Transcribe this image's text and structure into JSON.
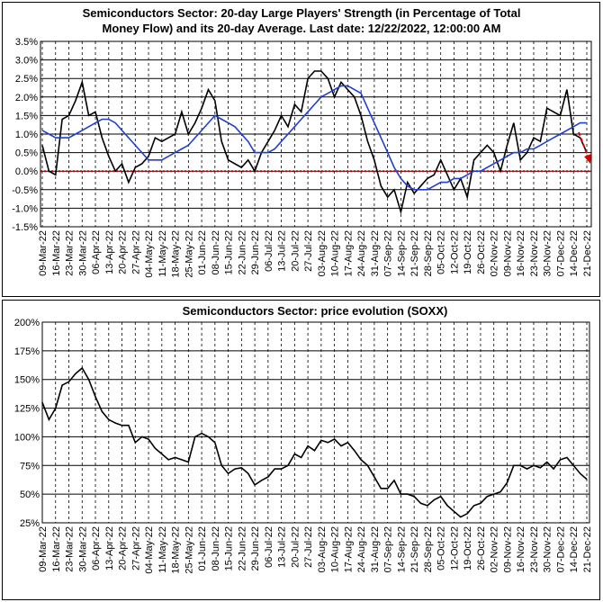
{
  "chart_data": [
    {
      "type": "line",
      "title": [
        "Semiconductors Sector: 20-day Large Players' Strength (in Percentage of Total",
        "Money Flow) and its 20-day Average. Last date: 12/22/2022, 12:00:00 AM"
      ],
      "categories": [
        "09-Mar-22",
        null,
        "16-Mar-22",
        null,
        "23-Mar-22",
        null,
        "30-Mar-22",
        null,
        "06-Apr-22",
        null,
        "13-Apr-22",
        null,
        "20-Apr-22",
        null,
        "27-Apr-22",
        null,
        "04-May-22",
        null,
        "11-May-22",
        null,
        "18-May-22",
        null,
        "25-May-22",
        null,
        "01-Jun-22",
        null,
        "08-Jun-22",
        null,
        "15-Jun-22",
        null,
        "22-Jun-22",
        null,
        "29-Jun-22",
        null,
        "06-Jul-22",
        null,
        "13-Jul-22",
        null,
        "20-Jul-22",
        null,
        "27-Jul-22",
        null,
        "03-Aug-22",
        null,
        "10-Aug-22",
        null,
        "17-Aug-22",
        null,
        "24-Aug-22",
        null,
        "31-Aug-22",
        null,
        "07-Sep-22",
        null,
        "14-Sep-22",
        null,
        "21-Sep-22",
        null,
        "28-Sep-22",
        null,
        "05-Oct-22",
        null,
        "12-Oct-22",
        null,
        "19-Oct-22",
        null,
        "26-Oct-22",
        null,
        "02-Nov-22",
        null,
        "09-Nov-22",
        null,
        "16-Nov-22",
        null,
        "23-Nov-22",
        null,
        "30-Nov-22",
        null,
        "07-Dec-22",
        null,
        "14-Dec-22",
        null,
        "21-Dec-22"
      ],
      "series": [
        {
          "color": "#000000",
          "values": [
            0.7,
            0.0,
            -0.1,
            1.4,
            1.5,
            1.9,
            2.4,
            1.5,
            1.6,
            0.9,
            0.4,
            0.0,
            0.2,
            -0.3,
            0.1,
            0.2,
            0.4,
            0.9,
            0.8,
            0.9,
            1.0,
            1.6,
            1.0,
            1.3,
            1.7,
            2.2,
            1.9,
            0.8,
            0.3,
            0.2,
            0.1,
            0.3,
            0.0,
            0.5,
            0.8,
            1.1,
            1.5,
            1.2,
            1.8,
            1.6,
            2.5,
            2.7,
            2.7,
            2.5,
            2.0,
            2.4,
            2.2,
            2.0,
            1.5,
            0.8,
            0.3,
            -0.4,
            -0.7,
            -0.5,
            -1.1,
            -0.3,
            -0.6,
            -0.4,
            -0.2,
            -0.1,
            0.3,
            -0.1,
            -0.5,
            -0.2,
            -0.7,
            0.3,
            0.5,
            0.7,
            0.5,
            0.0,
            0.7,
            1.3,
            0.3,
            0.5,
            0.9,
            0.8,
            1.7,
            1.6,
            1.5,
            2.2,
            1.0,
            0.9,
            0.5
          ]
        },
        {
          "color": "#1f3fcf",
          "values": [
            1.1,
            1.0,
            0.9,
            0.9,
            0.9,
            1.0,
            1.1,
            1.2,
            1.3,
            1.4,
            1.4,
            1.3,
            1.1,
            0.9,
            0.7,
            0.5,
            0.3,
            0.3,
            0.3,
            0.4,
            0.5,
            0.6,
            0.7,
            0.9,
            1.1,
            1.3,
            1.5,
            1.4,
            1.3,
            1.2,
            1.0,
            0.8,
            0.5,
            0.5,
            0.5,
            0.6,
            0.8,
            1.0,
            1.2,
            1.4,
            1.6,
            1.8,
            2.0,
            2.1,
            2.2,
            2.3,
            2.3,
            2.2,
            2.1,
            1.7,
            1.3,
            0.9,
            0.5,
            0.1,
            -0.2,
            -0.4,
            -0.5,
            -0.5,
            -0.5,
            -0.4,
            -0.3,
            -0.3,
            -0.2,
            -0.2,
            -0.1,
            0.0,
            0.0,
            0.1,
            0.2,
            0.3,
            0.4,
            0.5,
            0.5,
            0.6,
            0.6,
            0.7,
            0.8,
            0.9,
            1.0,
            1.1,
            1.2,
            1.3,
            1.3
          ]
        }
      ],
      "ylim": [
        -1.5,
        3.5
      ],
      "yticks": [
        {
          "value": -1.5,
          "label": "-1.5%"
        },
        {
          "value": -1.0,
          "label": "-1.0%"
        },
        {
          "value": -0.5,
          "label": "-0.5%"
        },
        {
          "value": 0,
          "label": "0.0%"
        },
        {
          "value": 0.5,
          "label": "0.5%"
        },
        {
          "value": 1.0,
          "label": "1.0%"
        },
        {
          "value": 1.5,
          "label": "1.5%"
        },
        {
          "value": 2.0,
          "label": "2.0%"
        },
        {
          "value": 2.5,
          "label": "2.5%"
        },
        {
          "value": 3.0,
          "label": "3.0%"
        },
        {
          "value": 3.5,
          "label": "3.5%"
        }
      ],
      "grid": true,
      "hline": {
        "value": 0,
        "color": "#cc0000"
      }
    },
    {
      "type": "line",
      "title": "Semiconductors Sector: price evolution (SOXX)",
      "categories": [
        "09-Mar-22",
        null,
        "16-Mar-22",
        null,
        "23-Mar-22",
        null,
        "30-Mar-22",
        null,
        "06-Apr-22",
        null,
        "13-Apr-22",
        null,
        "20-Apr-22",
        null,
        "27-Apr-22",
        null,
        "04-May-22",
        null,
        "11-May-22",
        null,
        "18-May-22",
        null,
        "25-May-22",
        null,
        "01-Jun-22",
        null,
        "08-Jun-22",
        null,
        "15-Jun-22",
        null,
        "22-Jun-22",
        null,
        "29-Jun-22",
        null,
        "06-Jul-22",
        null,
        "13-Jul-22",
        null,
        "20-Jul-22",
        null,
        "27-Jul-22",
        null,
        "03-Aug-22",
        null,
        "10-Aug-22",
        null,
        "17-Aug-22",
        null,
        "24-Aug-22",
        null,
        "31-Aug-22",
        null,
        "07-Sep-22",
        null,
        "14-Sep-22",
        null,
        "21-Sep-22",
        null,
        "28-Sep-22",
        null,
        "05-Oct-22",
        null,
        "12-Oct-22",
        null,
        "19-Oct-22",
        null,
        "26-Oct-22",
        null,
        "02-Nov-22",
        null,
        "09-Nov-22",
        null,
        "16-Nov-22",
        null,
        "23-Nov-22",
        null,
        "30-Nov-22",
        null,
        "07-Dec-22",
        null,
        "14-Dec-22",
        null,
        "21-Dec-22"
      ],
      "series": [
        {
          "color": "#000000",
          "values": [
            130,
            115,
            125,
            145,
            148,
            155,
            160,
            150,
            135,
            122,
            115,
            112,
            110,
            110,
            95,
            100,
            98,
            90,
            85,
            80,
            82,
            80,
            78,
            100,
            103,
            100,
            95,
            75,
            68,
            72,
            73,
            68,
            58,
            62,
            65,
            72,
            72,
            75,
            85,
            82,
            92,
            88,
            97,
            95,
            98,
            92,
            95,
            88,
            80,
            75,
            65,
            55,
            55,
            62,
            50,
            50,
            48,
            42,
            40,
            45,
            48,
            40,
            35,
            30,
            33,
            40,
            42,
            48,
            50,
            52,
            60,
            75,
            75,
            72,
            75,
            73,
            78,
            72,
            80,
            82,
            75,
            68,
            63
          ]
        }
      ],
      "ylim": [
        25,
        200
      ],
      "yticks": [
        {
          "value": 25,
          "label": "25%"
        },
        {
          "value": 50,
          "label": "50%"
        },
        {
          "value": 75,
          "label": "75%"
        },
        {
          "value": 100,
          "label": "100%"
        },
        {
          "value": 125,
          "label": "125%"
        },
        {
          "value": 150,
          "label": "150%"
        },
        {
          "value": 175,
          "label": "175%"
        },
        {
          "value": 200,
          "label": "200%"
        }
      ],
      "grid": true
    }
  ]
}
